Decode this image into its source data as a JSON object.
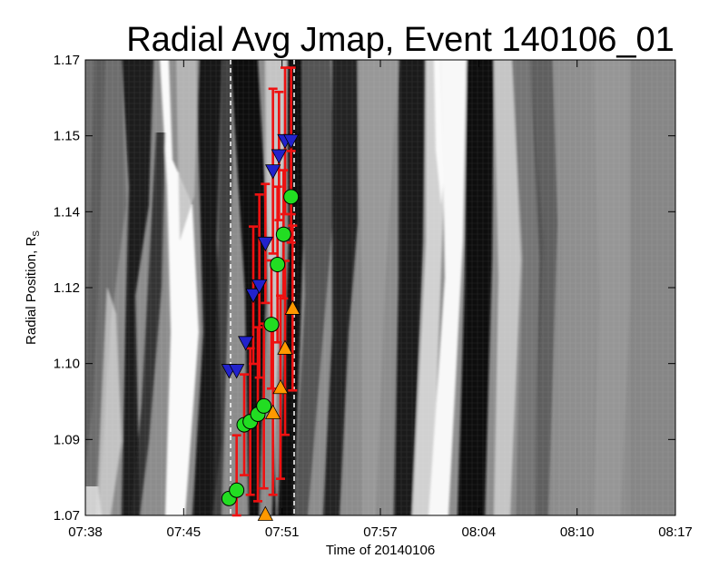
{
  "chart_data": {
    "type": "scatter",
    "title": "Radial Avg Jmap, Event 140106_01",
    "xlabel": "Time of 20140106",
    "ylabel": "Radial Position, R",
    "ylabel_subscript": "S",
    "x_ticks": [
      "07:38",
      "07:45",
      "07:51",
      "07:57",
      "08:04",
      "08:10",
      "08:17"
    ],
    "y_ticks": [
      "1.07",
      "1.09",
      "1.10",
      "1.12",
      "1.14",
      "1.15",
      "1.17"
    ],
    "xlim_minutes": [
      0,
      39
    ],
    "ylim": [
      1.07,
      1.1695
    ],
    "background": "grayscale J-map (time-distance intensity image)",
    "vertical_dashed_lines_minutes": [
      9.6,
      13.8
    ],
    "series": [
      {
        "marker": "circle",
        "color": "#22dd22",
        "points": [
          {
            "t": 9.5,
            "r": 1.0737,
            "err": 0.0
          },
          {
            "t": 10.0,
            "r": 1.0755,
            "err": 0.012
          },
          {
            "t": 10.5,
            "r": 1.0898,
            "err": 0.011
          },
          {
            "t": 10.9,
            "r": 1.0905,
            "err": 0.016
          },
          {
            "t": 11.4,
            "r": 1.0921,
            "err": 0.019
          },
          {
            "t": 11.8,
            "r": 1.0939,
            "err": 0.018
          },
          {
            "t": 12.3,
            "r": 1.1117,
            "err": 0.014
          },
          {
            "t": 12.7,
            "r": 1.1248,
            "err": 0.017
          },
          {
            "t": 13.1,
            "r": 1.1314,
            "err": 0.014
          },
          {
            "t": 13.6,
            "r": 1.1396,
            "err": 0.01
          }
        ]
      },
      {
        "marker": "triangle-down",
        "color": "#2222cc",
        "points": [
          {
            "t": 9.5,
            "r": 1.1016,
            "err": 0.0
          },
          {
            "t": 10.0,
            "r": 1.1016,
            "err": 0.0
          },
          {
            "t": 10.6,
            "r": 1.1077,
            "err": 0.0
          },
          {
            "t": 11.1,
            "r": 1.1181,
            "err": 0.015
          },
          {
            "t": 11.5,
            "r": 1.1201,
            "err": 0.02
          },
          {
            "t": 11.9,
            "r": 1.1294,
            "err": 0.013
          },
          {
            "t": 12.4,
            "r": 1.1452,
            "err": 0.018
          },
          {
            "t": 12.8,
            "r": 1.1485,
            "err": 0.014
          },
          {
            "t": 13.2,
            "r": 1.1518,
            "err": 0.016
          },
          {
            "t": 13.6,
            "r": 1.1518,
            "err": 0.016
          }
        ]
      },
      {
        "marker": "triangle-up",
        "color": "#ff9900",
        "points": [
          {
            "t": 11.9,
            "r": 1.0703,
            "err": 0.0
          },
          {
            "t": 12.4,
            "r": 1.0925,
            "err": 0.018
          },
          {
            "t": 12.9,
            "r": 1.098,
            "err": 0.02
          },
          {
            "t": 13.2,
            "r": 1.1066,
            "err": 0.019
          },
          {
            "t": 13.7,
            "r": 1.1153,
            "err": 0.018
          }
        ]
      }
    ],
    "errorbar_color": "#ee1111",
    "grid": true
  }
}
